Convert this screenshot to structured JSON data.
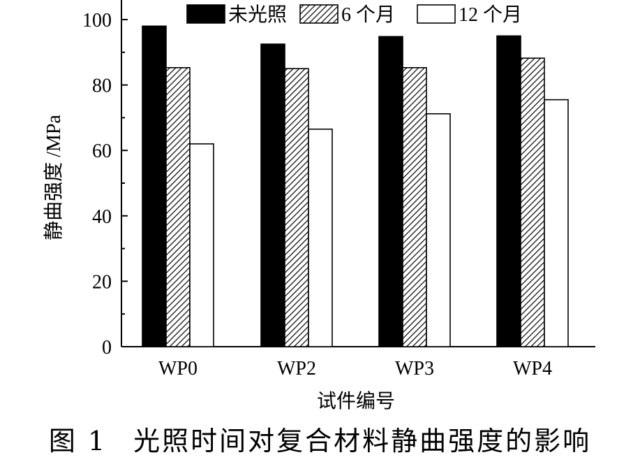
{
  "chart_data": {
    "type": "bar",
    "title": "",
    "xlabel": "试件编号",
    "ylabel": "静曲强度 /MPa",
    "categories": [
      "WP0",
      "WP2",
      "WP3",
      "WP4"
    ],
    "ylim": [
      0,
      100
    ],
    "yticks": [
      0,
      20,
      40,
      60,
      80,
      100
    ],
    "grid": false,
    "legend_position": "top",
    "series": [
      {
        "name": "未光照",
        "fill": "solid-black",
        "values": [
          98,
          92.5,
          94.8,
          95
        ]
      },
      {
        "name": "6 个月",
        "fill": "diagonal-hatch",
        "values": [
          85.3,
          85,
          85.3,
          88.2
        ]
      },
      {
        "name": "12 个月",
        "fill": "white",
        "values": [
          62,
          66.5,
          71.2,
          75.5
        ]
      }
    ]
  },
  "caption": {
    "label": "图 1",
    "text": "光照时间对复合材料静曲强度的影响"
  },
  "colors": {
    "bar_black": "#000000",
    "bar_white": "#ffffff",
    "axis": "#000000"
  }
}
